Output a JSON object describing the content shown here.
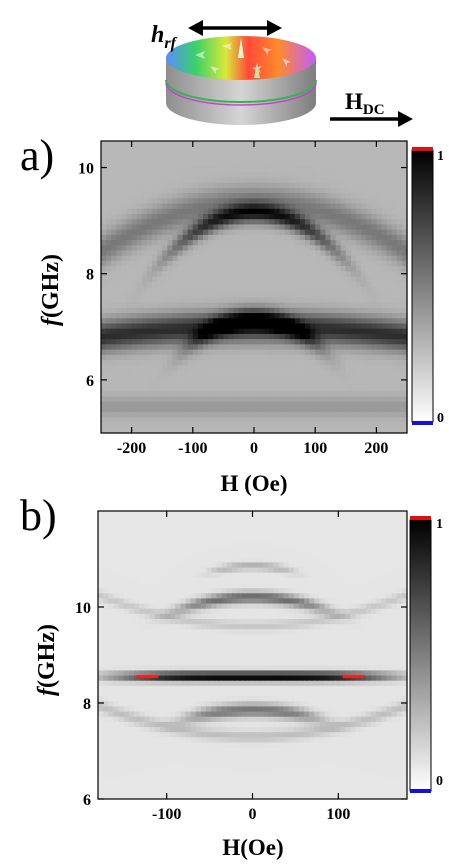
{
  "header": {
    "hrf_main": "h",
    "hrf_sub": "rf",
    "hdc_main": "H",
    "hdc_sub": "DC"
  },
  "panel_labels": {
    "a": "a)",
    "b": "b)"
  },
  "colors": {
    "scale_top": "#e01010",
    "scale_bottom": "#1010e0",
    "ridge_highlight": "#ff1a1a"
  },
  "chart_data": [
    {
      "panel": "a)",
      "type": "heatmap",
      "xlabel": "H (Oe)",
      "ylabel_italic": "f",
      "ylabel_rest": "(GHz)",
      "xlim": [
        -250,
        250
      ],
      "ylim": [
        5,
        10.5
      ],
      "xticks": [
        -200,
        -100,
        0,
        100,
        200
      ],
      "xtick_labels": [
        "-200",
        "-100",
        "0",
        "100",
        "200"
      ],
      "yticks": [
        6,
        8,
        10
      ],
      "ytick_labels": [
        "6",
        "8",
        "10"
      ],
      "colorbar": {
        "min": 0,
        "max": 1,
        "min_label": "0",
        "max_label": "1",
        "colormap": "white-to-black"
      },
      "modes": [
        {
          "f0": 7.0,
          "curv": -3e-06,
          "amp": 0.55,
          "width": 0.28
        },
        {
          "f0": 7.15,
          "curv": -4.5e-05,
          "amp": 0.45,
          "width": 0.2,
          "hrange": 110
        },
        {
          "f0": 9.15,
          "curv": -4e-05,
          "amp": 0.55,
          "width": 0.18,
          "hrange": 140
        },
        {
          "f0": 9.35,
          "curv": -1.5e-05,
          "amp": 0.25,
          "width": 0.3
        },
        {
          "f0": 5.5,
          "curv": 0,
          "amp": 0.12,
          "width": 0.2
        }
      ],
      "background": 0.28
    },
    {
      "panel": "b)",
      "type": "heatmap",
      "xlabel": "H(Oe)",
      "ylabel_italic": "f",
      "ylabel_rest": "(GHz)",
      "xlim": [
        -180,
        180
      ],
      "ylim": [
        6,
        12
      ],
      "xticks": [
        -100,
        0,
        100
      ],
      "xtick_labels": [
        "-100",
        "0",
        "100"
      ],
      "yticks": [
        6,
        8,
        10
      ],
      "ytick_labels": [
        "6",
        "8",
        "10"
      ],
      "colorbar": {
        "min": 0,
        "max": 1,
        "min_label": "0",
        "max_label": "1",
        "colormap": "white-to-black"
      },
      "modes": [
        {
          "f0": 8.55,
          "curv": 0,
          "amp": 0.95,
          "width": 0.1,
          "hrange": 160
        },
        {
          "f0": 7.85,
          "curv": -3e-05,
          "amp": 0.45,
          "width": 0.14,
          "hrange": 80
        },
        {
          "f0": 10.2,
          "curv": -3.5e-05,
          "amp": 0.5,
          "width": 0.12,
          "hrange": 90
        },
        {
          "f0": 10.85,
          "curv": -5e-05,
          "amp": 0.22,
          "width": 0.08,
          "hrange": 50
        },
        {
          "f0": 7.3,
          "curv": 2e-05,
          "amp": 0.15,
          "width": 0.12
        },
        {
          "f0": 9.6,
          "curv": 2e-05,
          "amp": 0.12,
          "width": 0.1
        }
      ],
      "highlights": [
        {
          "h_from": -135,
          "h_to": -110,
          "f": 8.55
        },
        {
          "h_from": 105,
          "h_to": 130,
          "f": 8.55
        }
      ],
      "background": 0.1
    }
  ]
}
